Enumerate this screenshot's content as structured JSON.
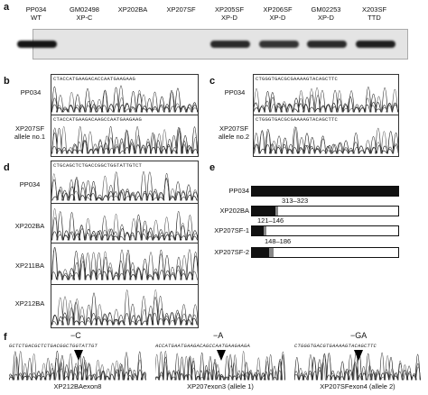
{
  "panels": {
    "a": "a",
    "b": "b",
    "c": "c",
    "d": "d",
    "e": "e",
    "f": "f"
  },
  "blot": {
    "lanes": [
      {
        "top": "PP034",
        "bottom": "WT",
        "intensity": 1.0
      },
      {
        "top": "GM02498",
        "bottom": "XP-C",
        "intensity": 0.0
      },
      {
        "top": "XP202BA",
        "bottom": "",
        "intensity": 0.0
      },
      {
        "top": "XP207SF",
        "bottom": "",
        "intensity": 0.0
      },
      {
        "top": "XP205SF",
        "bottom": "XP-D",
        "intensity": 0.9
      },
      {
        "top": "XP206SF",
        "bottom": "XP-D",
        "intensity": 0.85
      },
      {
        "top": "GM02253",
        "bottom": "XP-D",
        "intensity": 0.9
      },
      {
        "top": "X203SF",
        "bottom": "TTD",
        "intensity": 0.95
      }
    ]
  },
  "b": {
    "seq1": "CTACCATGAAGACACCAATGAAGAAG",
    "seq2": "CTACCATGAAGACAAGCCAATGAAGAAG",
    "row1": "PP034",
    "row2a": "XP207SF",
    "row2b": "allele no.1"
  },
  "c": {
    "seq1": "CTGGGTGACGCGAAAAGTACAGCTTC",
    "seq2": "CTGGGTGACGCGAAAAGTACAGCTTC",
    "row1": "PP034",
    "row2a": "XP207SF",
    "row2b": "allele no.2"
  },
  "d": {
    "seq": "CTGCAGCTCTGACCGGCTGGTATTGTCT",
    "rows": [
      "PP034",
      "XP202BA",
      "XP211BA",
      "XP212BA"
    ]
  },
  "e": {
    "rows": [
      {
        "label": "PP034",
        "black": 1.0,
        "grey": 0
      },
      {
        "label": "XP202BA",
        "black": 0.16,
        "grey": 0.02,
        "annot": "313–323"
      },
      {
        "label": "XP207SF-1",
        "black": 0.08,
        "grey": 0.02,
        "annot": "121–146"
      },
      {
        "label": "XP207SF-2",
        "black": 0.12,
        "grey": 0.03,
        "annot": "148–186"
      }
    ]
  },
  "f": {
    "panels": [
      {
        "seq": "GCTCTGACGCTCTGACGGCTGGTATTGT",
        "mark": "−C",
        "caption": "XP212BAexon8"
      },
      {
        "seq": "ACCATGAATGAAGACAGCCAATGAAGAAGA",
        "mark": "−A",
        "caption": "XP207exon3 (allele 1)"
      },
      {
        "seq": "CTGGGTGACGTGAAAAGTACAGCTTC",
        "mark": "−GA",
        "caption": "XP207SFexon4 (allele 2)"
      }
    ]
  }
}
